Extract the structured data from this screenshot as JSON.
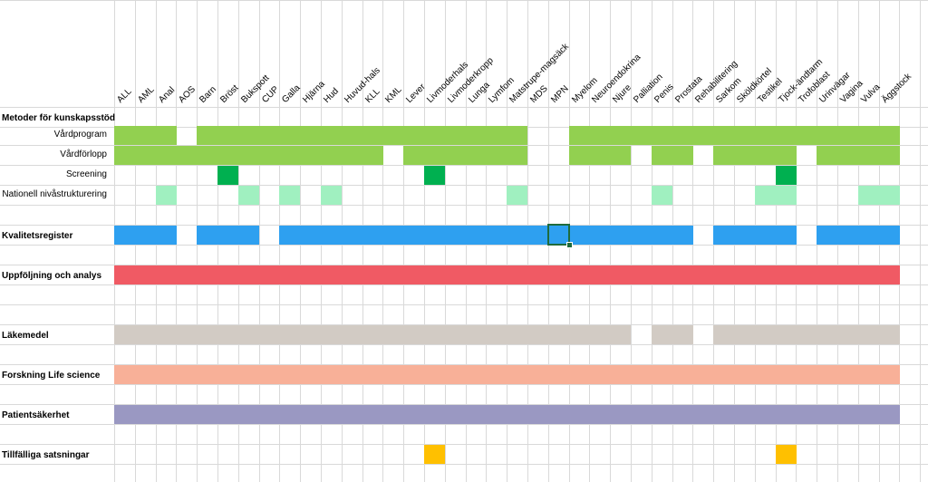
{
  "columns": [
    "ALL",
    "AML",
    "Anal",
    "AOS",
    "Barn",
    "Bröst",
    "Bukspott",
    "CUP",
    "Galla",
    "Hjärna",
    "Hud",
    "Huvud-hals",
    "KLL",
    "KML",
    "Lever",
    "Livmoderhals",
    "Livmoderkropp",
    "Lunga",
    "Lymfom",
    "Matstrupe-magsäck",
    "MDS",
    "MPN",
    "Myelom",
    "Neuroendokrina",
    "Njure",
    "Palliation",
    "Penis",
    "Prostata",
    "Rehabilitering",
    "Sarkom",
    "Sköldkörtel",
    "Testikel",
    "Tjock-ändtarm",
    "Trofoblast",
    "Urinvägar",
    "Vagina",
    "Vulva",
    "Äggstock"
  ],
  "colors": {
    "green": "#92d050",
    "dark_green": "#00b050",
    "light_green": "#a0f0c0",
    "blue": "#2ea0f0",
    "red": "#f05a64",
    "gray": "#d2cbc4",
    "salmon": "#f8b098",
    "purple": "#9a98c2",
    "orange": "#ffc000",
    "selection": "#1f6b3c"
  },
  "rows": [
    {
      "label": "Metoder för kunskapsstöd",
      "bold": true,
      "color": null,
      "cells": []
    },
    {
      "label": "Vårdprogram",
      "bold": false,
      "color": "green",
      "cells": [
        0,
        1,
        2,
        4,
        5,
        6,
        7,
        8,
        9,
        10,
        11,
        12,
        13,
        14,
        15,
        16,
        17,
        18,
        19,
        22,
        23,
        24,
        25,
        26,
        27,
        28,
        29,
        30,
        31,
        32,
        33,
        34,
        35,
        36,
        37
      ]
    },
    {
      "label": "Vårdförlopp",
      "bold": false,
      "color": "green",
      "cells": [
        0,
        1,
        2,
        3,
        4,
        5,
        6,
        7,
        8,
        9,
        10,
        11,
        12,
        14,
        15,
        16,
        17,
        18,
        19,
        22,
        23,
        24,
        26,
        27,
        29,
        30,
        31,
        32,
        34,
        35,
        36,
        37
      ]
    },
    {
      "label": "Screening",
      "bold": false,
      "color": "dark_green",
      "cells": [
        5,
        15,
        32
      ]
    },
    {
      "label": "Nationell nivåstrukturering",
      "bold": false,
      "color": "light_green",
      "cells": [
        2,
        6,
        8,
        10,
        19,
        26,
        31,
        32,
        36,
        37
      ]
    },
    {
      "label": "",
      "bold": false,
      "color": null,
      "cells": []
    },
    {
      "label": "Kvalitetsregister",
      "bold": true,
      "color": "blue",
      "cells": [
        0,
        1,
        2,
        4,
        5,
        6,
        8,
        9,
        10,
        11,
        12,
        13,
        14,
        15,
        16,
        17,
        18,
        19,
        20,
        21,
        22,
        23,
        24,
        25,
        26,
        27,
        29,
        30,
        31,
        32,
        34,
        35,
        36,
        37
      ]
    },
    {
      "label": "",
      "bold": false,
      "color": null,
      "cells": []
    },
    {
      "label": "Uppföljning och analys",
      "bold": true,
      "color": "red",
      "cells": "all"
    },
    {
      "label": "",
      "bold": false,
      "color": null,
      "cells": []
    },
    {
      "label": "",
      "bold": false,
      "color": null,
      "cells": []
    },
    {
      "label": "Läkemedel",
      "bold": true,
      "color": "gray",
      "cells": [
        0,
        1,
        2,
        3,
        4,
        5,
        6,
        7,
        8,
        9,
        10,
        11,
        12,
        13,
        14,
        15,
        16,
        17,
        18,
        19,
        20,
        21,
        22,
        23,
        24,
        26,
        27,
        29,
        30,
        31,
        32,
        33,
        34,
        35,
        36,
        37
      ]
    },
    {
      "label": "",
      "bold": false,
      "color": null,
      "cells": []
    },
    {
      "label": "Forskning Life science",
      "bold": true,
      "color": "salmon",
      "cells": "all"
    },
    {
      "label": "",
      "bold": false,
      "color": null,
      "cells": []
    },
    {
      "label": "Patientsäkerhet",
      "bold": true,
      "color": "purple",
      "cells": "all"
    },
    {
      "label": "",
      "bold": false,
      "color": null,
      "cells": []
    },
    {
      "label": "Tillfälliga satsningar",
      "bold": true,
      "color": "orange",
      "cells": [
        15,
        32
      ]
    }
  ],
  "selected_cell": {
    "row": 6,
    "col": 21
  }
}
